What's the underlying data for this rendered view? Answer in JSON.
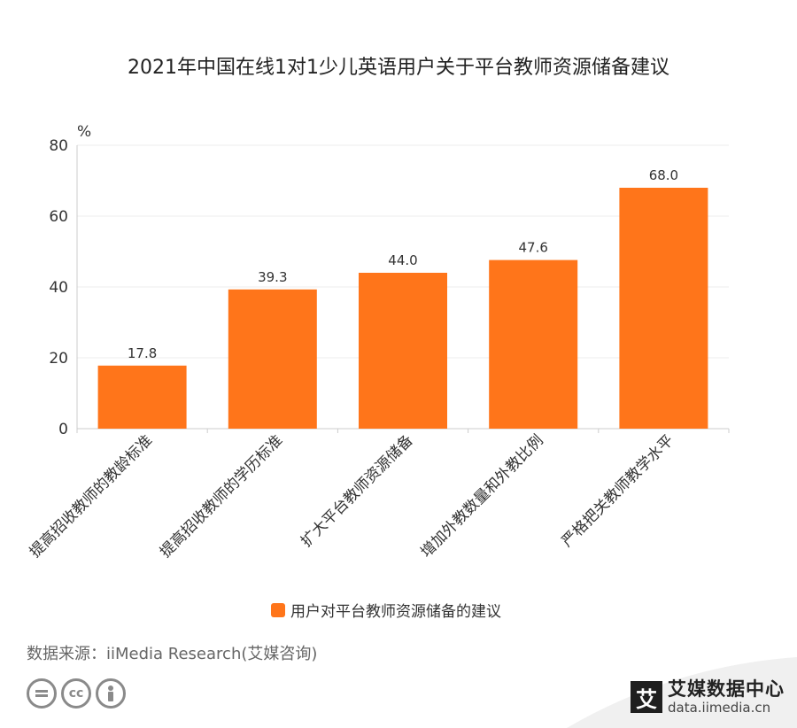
{
  "title": "2021年中国在线1对1少儿英语用户关于平台教师资源储备建议",
  "source": "数据来源：iiMedia Research(艾媒咨询)",
  "brand": {
    "mark": "艾",
    "name": "艾媒数据中心",
    "url": "data.iimedia.cn"
  },
  "license_icons": [
    "equals-icon",
    "cc-icon",
    "person-icon"
  ],
  "colors": {
    "bar": "#FF751A",
    "axis": "#cccccc",
    "grid": "#eeeeee"
  },
  "chart_data": {
    "type": "bar",
    "title": "2021年中国在线1对1少儿英语用户关于平台教师资源储备建议",
    "ylabel": "%",
    "xlabel": "",
    "ylim": [
      0,
      80
    ],
    "yticks": [
      0,
      20,
      40,
      60,
      80
    ],
    "categories": [
      "提高招收教师的教龄标准",
      "提高招收教师的学历标准",
      "扩大平台教师资源储备",
      "增加外教数量和外教比例",
      "严格把关教师教学水平"
    ],
    "series": [
      {
        "name": "用户对平台教师资源储备的建议",
        "values": [
          17.8,
          39.3,
          44.0,
          47.6,
          68.0
        ],
        "labels": [
          "17.8",
          "39.3",
          "44.0",
          "47.6",
          "68.0"
        ]
      }
    ],
    "legend": "bottom",
    "grid": true
  }
}
